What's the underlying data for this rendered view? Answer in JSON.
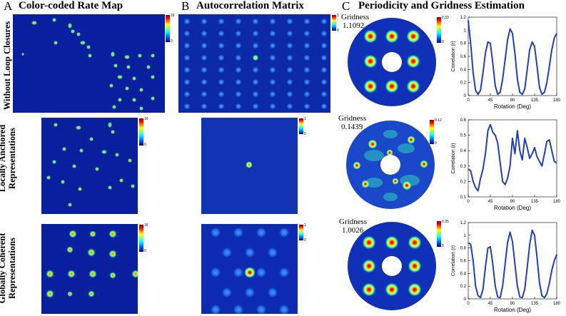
{
  "panels": [
    {
      "letter": "A",
      "title": "Color-coded Rate Map"
    },
    {
      "letter": "B",
      "title": "Autocorrelation Matrix"
    },
    {
      "letter": "C",
      "title": "Periodicity and Gridness Estimation"
    }
  ],
  "rows": [
    {
      "label_lines": [
        "Without Loop Closures"
      ],
      "rate_cbar": {
        "max": "16",
        "min": "0"
      },
      "auto_cbar": {
        "max": "1",
        "min": "0"
      },
      "disk_cbar": {
        "max": "0.33",
        "min": "0"
      },
      "gridness_label": "Gridness",
      "gridness_value": "1.1092"
    },
    {
      "label_lines": [
        "Locally Anchored",
        "Representations"
      ],
      "rate_cbar": {
        "max": "16",
        "min": "0"
      },
      "auto_cbar": {
        "max": "1",
        "min": "0"
      },
      "disk_cbar": {
        "max": "0.12",
        "min": "0"
      },
      "gridness_label": "Gridness",
      "gridness_value": "0.1439"
    },
    {
      "label_lines": [
        "Globally Coherent",
        "Representations"
      ],
      "rate_cbar": {
        "max": "16",
        "min": "0"
      },
      "auto_cbar": {
        "max": "1",
        "min": "0"
      },
      "disk_cbar": {
        "max": "0.35",
        "min": "0"
      },
      "gridness_label": "Gridness",
      "gridness_value": "1.0026"
    }
  ],
  "colors": {
    "map_bg": "#0a1f9e",
    "line": "#1f3fbf"
  },
  "chart_data": [
    {
      "type": "line",
      "xlabel": "Rotation (Deg)",
      "ylabel": "Correlation (r)",
      "xlim": [
        0,
        180
      ],
      "ylim": [
        0,
        1.2
      ],
      "xticks": [
        "0",
        "45",
        "90",
        "135",
        "180"
      ],
      "yticks": [
        "0",
        "0.2",
        "0.4",
        "0.6",
        "0.8",
        "1",
        "1.2"
      ],
      "x": [
        0,
        5,
        10,
        15,
        20,
        25,
        30,
        35,
        40,
        45,
        50,
        55,
        60,
        65,
        70,
        75,
        80,
        85,
        90,
        95,
        100,
        105,
        110,
        115,
        120,
        125,
        130,
        135,
        140,
        145,
        150,
        155,
        160,
        165,
        170,
        175,
        180
      ],
      "y": [
        1.15,
        0.8,
        0.35,
        0.08,
        0.02,
        0.08,
        0.35,
        0.65,
        0.82,
        0.8,
        0.5,
        0.15,
        0.02,
        0.05,
        0.25,
        0.55,
        0.85,
        1.02,
        0.95,
        0.65,
        0.25,
        0.05,
        0.02,
        0.1,
        0.4,
        0.7,
        0.82,
        0.75,
        0.45,
        0.12,
        0.02,
        0.05,
        0.2,
        0.45,
        0.7,
        0.88,
        0.95
      ]
    },
    {
      "type": "line",
      "xlabel": "Rotation (Deg)",
      "ylabel": "Correlation (r)",
      "xlim": [
        0,
        180
      ],
      "ylim": [
        0.1,
        0.6
      ],
      "xticks": [
        "0",
        "45",
        "90",
        "135",
        "180"
      ],
      "yticks": [
        "0.1",
        "0.2",
        "0.3",
        "0.4",
        "0.5",
        "0.6"
      ],
      "x": [
        0,
        5,
        10,
        15,
        20,
        25,
        30,
        35,
        40,
        45,
        50,
        55,
        60,
        65,
        70,
        75,
        80,
        85,
        90,
        95,
        100,
        105,
        110,
        115,
        120,
        125,
        130,
        135,
        140,
        145,
        150,
        155,
        160,
        165,
        170,
        175,
        180
      ],
      "y": [
        0.28,
        0.27,
        0.2,
        0.16,
        0.14,
        0.22,
        0.28,
        0.38,
        0.53,
        0.57,
        0.52,
        0.5,
        0.45,
        0.32,
        0.2,
        0.18,
        0.22,
        0.3,
        0.48,
        0.38,
        0.53,
        0.4,
        0.34,
        0.48,
        0.42,
        0.35,
        0.38,
        0.42,
        0.36,
        0.33,
        0.3,
        0.38,
        0.46,
        0.47,
        0.4,
        0.33,
        0.32
      ]
    },
    {
      "type": "line",
      "xlabel": "Rotation (Deg)",
      "ylabel": "Correlation (r)",
      "xlim": [
        0,
        180
      ],
      "ylim": [
        0,
        1.2
      ],
      "xticks": [
        "0",
        "45",
        "90",
        "135",
        "180"
      ],
      "yticks": [
        "0",
        "0.2",
        "0.4",
        "0.6",
        "0.8",
        "1",
        "1.2"
      ],
      "x": [
        0,
        5,
        10,
        15,
        20,
        25,
        30,
        35,
        40,
        45,
        50,
        55,
        60,
        65,
        70,
        75,
        80,
        85,
        90,
        95,
        100,
        105,
        110,
        115,
        120,
        125,
        130,
        135,
        140,
        145,
        150,
        155,
        160,
        165,
        170,
        175,
        180
      ],
      "y": [
        0.88,
        0.86,
        0.6,
        0.2,
        0.05,
        0.02,
        0.15,
        0.5,
        0.8,
        0.82,
        0.55,
        0.2,
        0.03,
        0.02,
        0.2,
        0.55,
        0.88,
        1.05,
        0.9,
        0.55,
        0.2,
        0.03,
        0.02,
        0.15,
        0.5,
        0.85,
        1.08,
        1.0,
        0.65,
        0.25,
        0.05,
        0.02,
        0.08,
        0.25,
        0.45,
        0.6,
        0.7
      ]
    }
  ]
}
